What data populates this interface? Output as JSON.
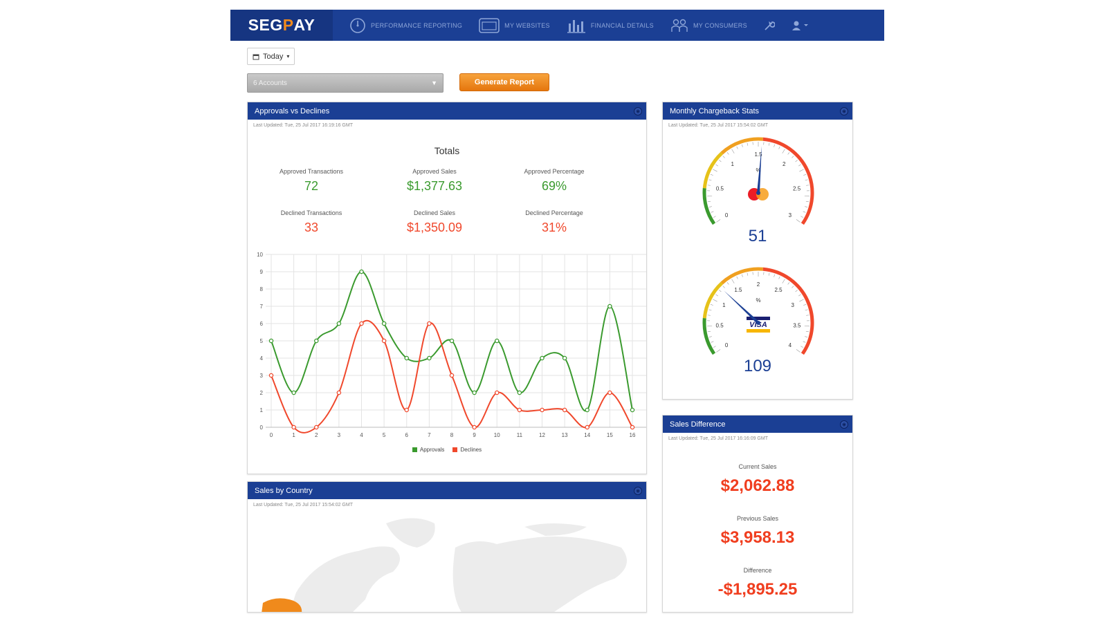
{
  "nav": {
    "logo": {
      "prefix": "SEG",
      "p": "P",
      "suffix": "AY"
    },
    "items": [
      {
        "label": "Performance Reporting",
        "icon": "gauge-icon"
      },
      {
        "label": "My Websites",
        "icon": "browser-icon"
      },
      {
        "label": "Financial Details",
        "icon": "bar-chart-icon"
      },
      {
        "label": "My Consumers",
        "icon": "users-icon"
      }
    ],
    "settings_icon": "wrench-icon",
    "user_icon": "user-icon"
  },
  "filters": {
    "date_label": "Today",
    "accounts_value": "6 Accounts",
    "generate_label": "Generate Report"
  },
  "colors": {
    "brand": "#1b3f94",
    "accent": "#f08a1c",
    "approvals": "#3a9a2e",
    "declines": "#f0482c"
  },
  "approvals_panel": {
    "title": "Approvals vs Declines",
    "updated": "Last Updated: Tue, 25 Jul 2017 16:19:16 GMT",
    "totals_title": "Totals",
    "stats": {
      "approved_tx_label": "Approved Transactions",
      "approved_tx": "72",
      "approved_sales_label": "Approved Sales",
      "approved_sales": "$1,377.63",
      "approved_pct_label": "Approved Percentage",
      "approved_pct": "69%",
      "declined_tx_label": "Declined Transactions",
      "declined_tx": "33",
      "declined_sales_label": "Declined Sales",
      "declined_sales": "$1,350.09",
      "declined_pct_label": "Declined Percentage",
      "declined_pct": "31%"
    }
  },
  "chart_data": {
    "type": "line",
    "x": [
      0,
      1,
      2,
      3,
      4,
      5,
      6,
      7,
      8,
      9,
      10,
      11,
      12,
      13,
      14,
      15,
      16
    ],
    "ylim": [
      0,
      10
    ],
    "yticks": [
      0,
      1,
      2,
      3,
      4,
      5,
      6,
      7,
      8,
      9,
      10
    ],
    "grid": true,
    "legend_position": "bottom",
    "series": [
      {
        "name": "Approvals",
        "color": "#3a9a2e",
        "values": [
          5,
          2,
          5,
          6,
          9,
          6,
          4,
          4,
          5,
          2,
          5,
          2,
          4,
          4,
          1,
          7,
          1
        ]
      },
      {
        "name": "Declines",
        "color": "#f0482c",
        "values": [
          3,
          0,
          0,
          2,
          6,
          5,
          1,
          6,
          3,
          0,
          2,
          1,
          1,
          1,
          0,
          2,
          0
        ]
      }
    ]
  },
  "chargeback_panel": {
    "title": "Monthly Chargeback Stats",
    "updated": "Last Updated: Tue, 25 Jul 2017 15:54:02 GMT",
    "gauges": [
      {
        "brand": "mastercard",
        "value": "51",
        "needle": 1.55,
        "max": 3,
        "ticks": [
          "0",
          "0.5",
          "1",
          "1.5",
          "2",
          "2.5",
          "3"
        ],
        "unit": "%"
      },
      {
        "brand": "visa",
        "value": "109",
        "needle": 1.25,
        "max": 4,
        "ticks": [
          "0",
          "0.5",
          "1",
          "1.5",
          "2",
          "2.5",
          "3",
          "3.5",
          "4"
        ],
        "unit": "%",
        "logo_text": "VISA"
      }
    ]
  },
  "sales_diff_panel": {
    "title": "Sales Difference",
    "updated": "Last Updated: Tue, 25 Jul 2017 16:16:09 GMT",
    "current_label": "Current Sales",
    "current": "$2,062.88",
    "previous_label": "Previous Sales",
    "previous": "$3,958.13",
    "difference_label": "Difference",
    "difference": "-$1,895.25"
  },
  "country_panel": {
    "title": "Sales by Country",
    "updated": "Last Updated: Tue, 25 Jul 2017 15:54:02 GMT"
  }
}
